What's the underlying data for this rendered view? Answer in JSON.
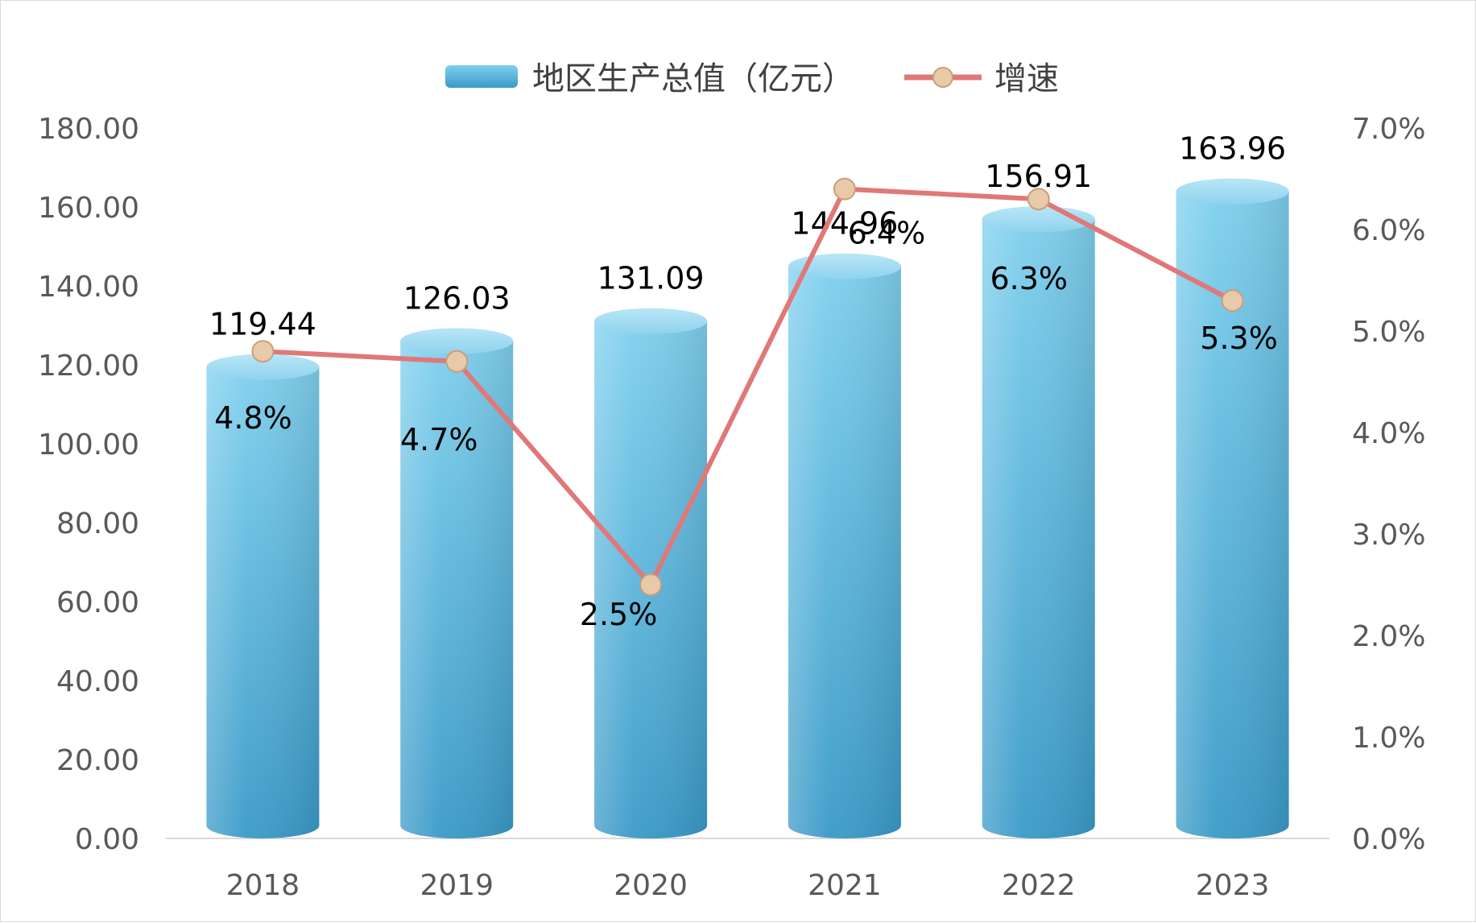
{
  "chart_data": {
    "type": "bar",
    "categories": [
      "2018",
      "2019",
      "2020",
      "2021",
      "2022",
      "2023"
    ],
    "series": [
      {
        "name": "地区生产总值（亿元）",
        "type": "bar",
        "axis": "left",
        "values": [
          119.44,
          126.03,
          131.09,
          144.96,
          156.91,
          163.96
        ],
        "labels": [
          "119.44",
          "126.03",
          "131.09",
          "144.96",
          "156.91",
          "163.96"
        ],
        "color": "#4bb0d8"
      },
      {
        "name": "增速",
        "type": "line",
        "axis": "right",
        "values": [
          4.8,
          4.7,
          2.5,
          6.4,
          6.3,
          5.3
        ],
        "labels": [
          "4.8%",
          "4.7%",
          "2.5%",
          "6.4%",
          "6.3%",
          "5.3%"
        ],
        "color": "#e07878",
        "marker_color": "#e8c9a8"
      }
    ],
    "y_left": {
      "ylim": [
        0,
        180
      ],
      "ticks": [
        "0.00",
        "20.00",
        "40.00",
        "60.00",
        "80.00",
        "100.00",
        "120.00",
        "140.00",
        "160.00",
        "180.00"
      ]
    },
    "y_right": {
      "ylim": [
        0,
        7
      ],
      "ticks": [
        "0.0%",
        "1.0%",
        "2.0%",
        "3.0%",
        "4.0%",
        "5.0%",
        "6.0%",
        "7.0%"
      ]
    },
    "grid": false,
    "legend_position": "top-center"
  }
}
